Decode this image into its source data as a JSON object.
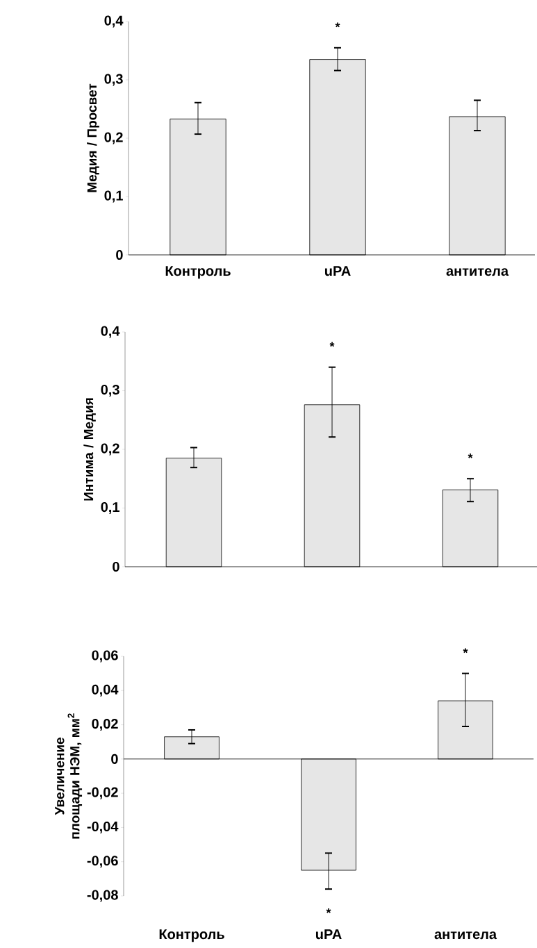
{
  "chart_data": [
    {
      "type": "bar",
      "ylabel": "Медия / Просвет",
      "categories": [
        "Контроль",
        "uPA",
        "антитела"
      ],
      "values": [
        0.233,
        0.335,
        0.237
      ],
      "color": "#e6e6e6",
      "errors": [
        [
          0.207,
          0.261
        ],
        [
          0.316,
          0.355
        ],
        [
          0.213,
          0.265
        ]
      ],
      "ylim": [
        0,
        0.4
      ],
      "yticks": [
        0,
        {
          "value": 0.1,
          "label": "0,1"
        },
        {
          "value": 0.2,
          "label": "0,2"
        },
        {
          "value": 0.3,
          "label": "0,3"
        },
        {
          "value": 0.4,
          "label": "0,4"
        }
      ],
      "annotations": [
        "*"
      ]
    },
    {
      "type": "bar",
      "ylabel": "Интима / Медия",
      "categories": [
        null,
        null,
        null
      ],
      "values": [
        0.185,
        0.276,
        0.131
      ],
      "color": "#e6e6e6",
      "errors": [
        [
          0.169,
          0.203
        ],
        [
          0.221,
          0.34
        ],
        [
          0.111,
          0.15
        ]
      ],
      "ylim": [
        0,
        0.4
      ],
      "yticks": [
        0,
        {
          "value": 0.1,
          "label": "0,1"
        },
        {
          "value": 0.2,
          "label": "0,2"
        },
        {
          "value": 0.3,
          "label": "0,3"
        },
        {
          "value": 0.4,
          "label": "0,4"
        }
      ],
      "annotations": [
        "*",
        "*"
      ]
    },
    {
      "type": "bar",
      "ylabel": "Увеличение площади НЭМ, мм$^{2}$",
      "categories": [
        "Контроль",
        "uPA",
        "антитела"
      ],
      "values": [
        0.013,
        -0.065,
        0.034
      ],
      "color": "#e6e6e6",
      "errors": [
        [
          0.009,
          0.017
        ],
        [
          -0.076,
          -0.055
        ],
        [
          0.019,
          0.05
        ]
      ],
      "ylim": [
        -0.08,
        0.06
      ],
      "yticks": [
        {
          "value": -0.08,
          "label": "-0,08"
        },
        {
          "value": -0.06,
          "label": "-0,06"
        },
        {
          "value": -0.04,
          "label": "-0,04"
        },
        {
          "value": -0.02,
          "label": "-0,02"
        },
        0,
        {
          "value": 0.02,
          "label": "0,02"
        },
        {
          "value": 0.04,
          "label": "0,04"
        },
        {
          "value": 0.06,
          "label": "0,06"
        }
      ],
      "annotations": [
        "*",
        "*"
      ]
    }
  ]
}
